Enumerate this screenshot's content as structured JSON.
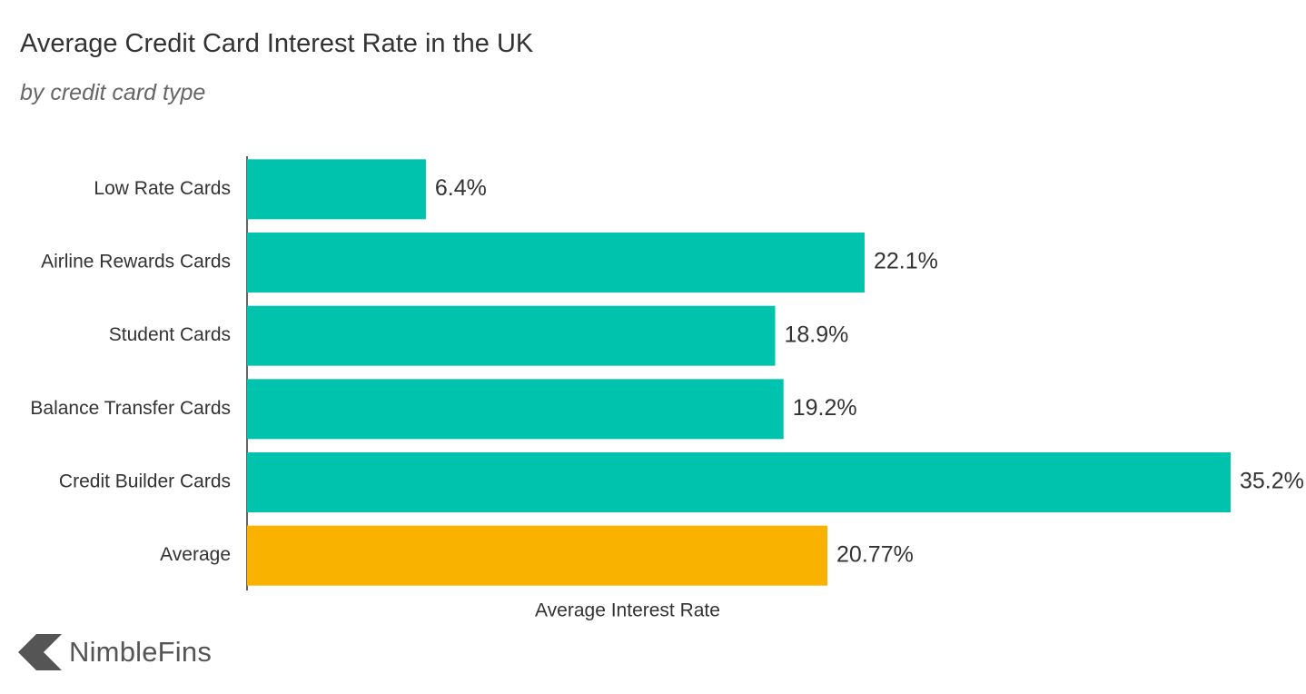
{
  "colors": {
    "bar": "#00C3AE",
    "average_bar": "#F9B200",
    "text": "#333333",
    "axis": "#333333"
  },
  "chart_data": {
    "type": "bar",
    "orientation": "horizontal",
    "title": "Average Credit Card Interest Rate in the UK",
    "subtitle": "by credit card type",
    "xlabel": "Average Interest Rate",
    "ylabel": "",
    "xlim": [
      0,
      35.2
    ],
    "grid": false,
    "legend": "none",
    "categories": [
      "Low Rate Cards",
      "Airline Rewards Cards",
      "Student Cards",
      "Balance Transfer Cards",
      "Credit Builder Cards",
      "Average"
    ],
    "values": [
      6.4,
      22.1,
      18.9,
      19.2,
      35.2,
      20.77
    ],
    "data_labels": [
      "6.4%",
      "22.1%",
      "18.9%",
      "19.2%",
      "35.2%",
      "20.77%"
    ],
    "highlight_category": "Average"
  },
  "branding": {
    "logo_text": "NimbleFins",
    "logo_icon": "nimblefins-chevron-icon"
  }
}
